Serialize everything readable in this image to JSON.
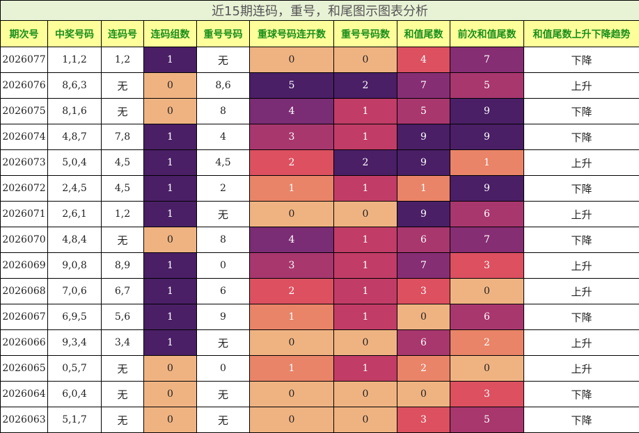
{
  "title": "近15期连码，重号，和尾图示图表分析",
  "columns": [
    "期次号",
    "中奖号码",
    "连码号",
    "连码组数",
    "重号号码",
    "重球号码连开数",
    "重号号码数",
    "和值尾数",
    "前次和值尾数",
    "和值尾数上升下降趋势"
  ],
  "rows": [
    {
      "issue": "2026077",
      "numbers": "1,1,2",
      "lianma": "1,2",
      "lianma_groups": "1",
      "repeat": "无",
      "repeat_streak": "0",
      "repeat_count": "0",
      "tail": "4",
      "prev_tail": "7",
      "trend": "下降"
    },
    {
      "issue": "2026076",
      "numbers": "8,6,3",
      "lianma": "无",
      "lianma_groups": "0",
      "repeat": "8,6",
      "repeat_streak": "5",
      "repeat_count": "2",
      "tail": "7",
      "prev_tail": "5",
      "trend": "上升"
    },
    {
      "issue": "2026075",
      "numbers": "8,1,6",
      "lianma": "无",
      "lianma_groups": "0",
      "repeat": "8",
      "repeat_streak": "4",
      "repeat_count": "1",
      "tail": "5",
      "prev_tail": "9",
      "trend": "下降"
    },
    {
      "issue": "2026074",
      "numbers": "4,8,7",
      "lianma": "7,8",
      "lianma_groups": "1",
      "repeat": "4",
      "repeat_streak": "3",
      "repeat_count": "1",
      "tail": "9",
      "prev_tail": "9",
      "trend": "下降"
    },
    {
      "issue": "2026073",
      "numbers": "5,0,4",
      "lianma": "4,5",
      "lianma_groups": "1",
      "repeat": "4,5",
      "repeat_streak": "2",
      "repeat_count": "2",
      "tail": "9",
      "prev_tail": "1",
      "trend": "上升"
    },
    {
      "issue": "2026072",
      "numbers": "2,4,5",
      "lianma": "4,5",
      "lianma_groups": "1",
      "repeat": "2",
      "repeat_streak": "1",
      "repeat_count": "1",
      "tail": "1",
      "prev_tail": "9",
      "trend": "下降"
    },
    {
      "issue": "2026071",
      "numbers": "2,6,1",
      "lianma": "1,2",
      "lianma_groups": "1",
      "repeat": "无",
      "repeat_streak": "0",
      "repeat_count": "0",
      "tail": "9",
      "prev_tail": "6",
      "trend": "上升"
    },
    {
      "issue": "2026070",
      "numbers": "4,8,4",
      "lianma": "无",
      "lianma_groups": "0",
      "repeat": "8",
      "repeat_streak": "4",
      "repeat_count": "1",
      "tail": "6",
      "prev_tail": "7",
      "trend": "下降"
    },
    {
      "issue": "2026069",
      "numbers": "9,0,8",
      "lianma": "8,9",
      "lianma_groups": "1",
      "repeat": "0",
      "repeat_streak": "3",
      "repeat_count": "1",
      "tail": "7",
      "prev_tail": "3",
      "trend": "上升"
    },
    {
      "issue": "2026068",
      "numbers": "7,0,6",
      "lianma": "6,7",
      "lianma_groups": "1",
      "repeat": "6",
      "repeat_streak": "2",
      "repeat_count": "1",
      "tail": "3",
      "prev_tail": "0",
      "trend": "上升"
    },
    {
      "issue": "2026067",
      "numbers": "6,9,5",
      "lianma": "5,6",
      "lianma_groups": "1",
      "repeat": "9",
      "repeat_streak": "1",
      "repeat_count": "1",
      "tail": "0",
      "prev_tail": "6",
      "trend": "下降"
    },
    {
      "issue": "2026066",
      "numbers": "9,3,4",
      "lianma": "3,4",
      "lianma_groups": "1",
      "repeat": "无",
      "repeat_streak": "0",
      "repeat_count": "0",
      "tail": "6",
      "prev_tail": "2",
      "trend": "上升"
    },
    {
      "issue": "2026065",
      "numbers": "0,5,7",
      "lianma": "无",
      "lianma_groups": "0",
      "repeat": "0",
      "repeat_streak": "1",
      "repeat_count": "1",
      "tail": "2",
      "prev_tail": "0",
      "trend": "上升"
    },
    {
      "issue": "2026064",
      "numbers": "6,0,4",
      "lianma": "无",
      "lianma_groups": "0",
      "repeat": "无",
      "repeat_streak": "0",
      "repeat_count": "0",
      "tail": "0",
      "prev_tail": "3",
      "trend": "下降"
    },
    {
      "issue": "2026063",
      "numbers": "5,1,7",
      "lianma": "无",
      "lianma_groups": "0",
      "repeat": "无",
      "repeat_streak": "0",
      "repeat_count": "0",
      "tail": "3",
      "prev_tail": "5",
      "trend": "下降"
    }
  ],
  "colors": {
    "title_bg": "#e8f2d5",
    "header_bg": "#fefe9a",
    "header_text": "#1a8f1a",
    "heat_palette": [
      "#efb382",
      "#e98468",
      "#dc5060",
      "#c13c67",
      "#a8376e",
      "#862e73",
      "#6c2872",
      "#5a2570",
      "#4a1f66",
      "#3f1f5a"
    ],
    "heat_lianma_groups": [
      "#efb382",
      "#4a1f66"
    ],
    "heat_repeat_streak": [
      "#efb382",
      "#e98468",
      "#dc5060",
      "#a8376e",
      "#7a2c74",
      "#4a1f66"
    ],
    "heat_repeat_count": [
      "#efb382",
      "#c13c67",
      "#4a1f66"
    ],
    "heat_tail": [
      "#efb382",
      "#e98468",
      "#e98468",
      "#dc5060",
      "#dc5060",
      "#a8376e",
      "#a8376e",
      "#862e73",
      "#6c2872",
      "#4a1f66"
    ]
  }
}
